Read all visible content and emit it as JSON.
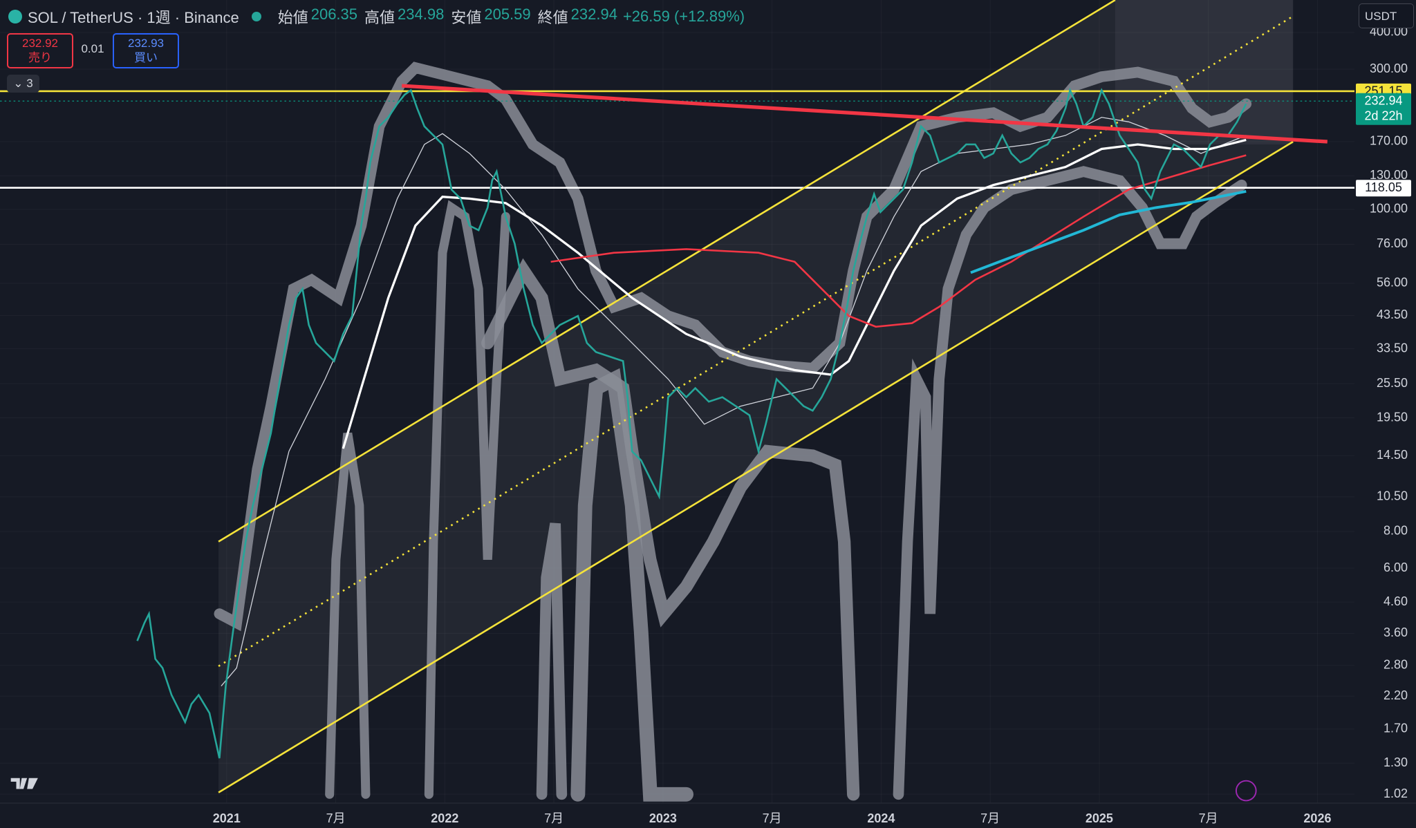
{
  "header": {
    "symbol": "SOL / TetherUS · 1週 · Binance",
    "ohlc": [
      {
        "label": "始値",
        "value": "206.35"
      },
      {
        "label": "高値",
        "value": "234.98"
      },
      {
        "label": "安値",
        "value": "205.59"
      },
      {
        "label": "終値",
        "value": "232.94"
      }
    ],
    "change": "+26.59 (+12.89%)"
  },
  "trade": {
    "sell_price": "232.92",
    "sell_label": "売り",
    "spread": "0.01",
    "buy_price": "232.93",
    "buy_label": "買い"
  },
  "indicator_count": "3",
  "currency": "USDT",
  "price_axis": {
    "scale": "log",
    "range": [
      0.951,
      516
    ],
    "ticks": [
      {
        "value": 400,
        "label": "400.00"
      },
      {
        "value": 300,
        "label": "300.00"
      },
      {
        "value": 170,
        "label": "170.00"
      },
      {
        "value": 130,
        "label": "130.00"
      },
      {
        "value": 100,
        "label": "100.00"
      },
      {
        "value": 76,
        "label": "76.00"
      },
      {
        "value": 56,
        "label": "56.00"
      },
      {
        "value": 43.5,
        "label": "43.50"
      },
      {
        "value": 33.5,
        "label": "33.50"
      },
      {
        "value": 25.5,
        "label": "25.50"
      },
      {
        "value": 19.5,
        "label": "19.50"
      },
      {
        "value": 14.5,
        "label": "14.50"
      },
      {
        "value": 10.5,
        "label": "10.50"
      },
      {
        "value": 8,
        "label": "8.00"
      },
      {
        "value": 6,
        "label": "6.00"
      },
      {
        "value": 4.6,
        "label": "4.60"
      },
      {
        "value": 3.6,
        "label": "3.60"
      },
      {
        "value": 2.8,
        "label": "2.80"
      },
      {
        "value": 2.2,
        "label": "2.20"
      },
      {
        "value": 1.7,
        "label": "1.70"
      },
      {
        "value": 1.3,
        "label": "1.30"
      },
      {
        "value": 1.02,
        "label": "1.02"
      }
    ]
  },
  "time_axis": {
    "labels": [
      "2021",
      "7月",
      "2022",
      "7月",
      "2023",
      "7月",
      "2024",
      "7月",
      "2025",
      "7月",
      "2026"
    ]
  },
  "price_tags": [
    {
      "value": 251.15,
      "label": "251.15",
      "color": "#f5e33a"
    },
    {
      "value": 232.94,
      "label": "232.94",
      "sub": "2d 22h",
      "color": "#089981"
    },
    {
      "value": 118.05,
      "label": "118.05",
      "color": "#ffffff"
    }
  ]
}
